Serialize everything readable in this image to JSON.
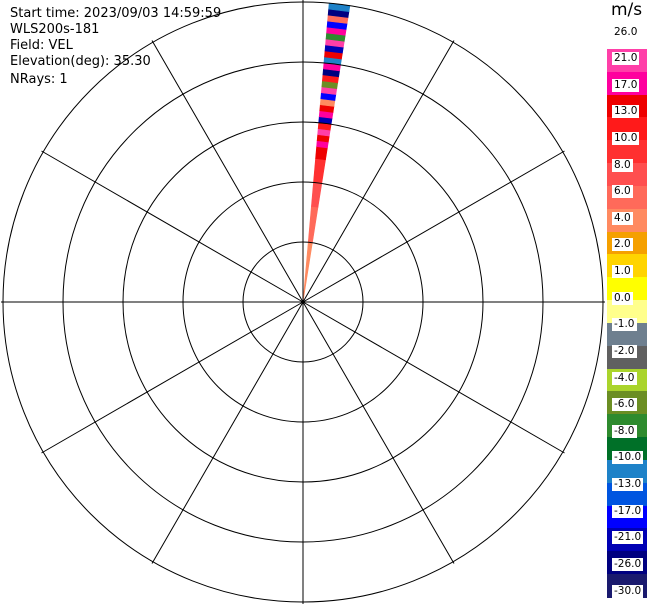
{
  "info": {
    "start_time": "Start time: 2023/09/03 14:59:59",
    "instrument": "WLS200s-181",
    "field": "Field: VEL",
    "elevation": "Elevation(deg): 35.30",
    "nrays": "NRays: 1"
  },
  "colorbar": {
    "unit": "m/s",
    "labels": [
      "26.0",
      "21.0",
      "17.0",
      "13.0",
      "10.0",
      "8.0",
      "6.0",
      "4.0",
      "2.0",
      "1.0",
      "0.0",
      "-1.0",
      "-2.0",
      "-4.0",
      "-6.0",
      "-8.0",
      "-10.0",
      "-13.0",
      "-17.0",
      "-21.0",
      "-26.0",
      "-30.0"
    ],
    "colors": [
      "#ffffff",
      "#ff3fa8",
      "#ff009e",
      "#ee0000",
      "#ff1a1a",
      "#ff3030",
      "#ff4f4f",
      "#ff6a5a",
      "#ff8a60",
      "#f5a000",
      "#ffd400",
      "#ffff00",
      "#ffff8c",
      "#6e7f8f",
      "#606060",
      "#aad42c",
      "#6b8e23",
      "#2e8b2e",
      "#007028",
      "#1e82c8",
      "#0055e0",
      "#0000ff",
      "#0000b4",
      "#000080",
      "#1a1a6e"
    ]
  },
  "chart_data": {
    "type": "ppi-polar",
    "field": "VEL",
    "units": "m/s",
    "elevation_deg": 35.3,
    "nrays": 1,
    "ray_azimuth_deg": 7,
    "ray_beam_width_deg": 4,
    "range_rings": 5,
    "spokes_deg": [
      0,
      30,
      60,
      90,
      120,
      150,
      180,
      210,
      240,
      270,
      300,
      330
    ],
    "ray_gates": [
      {
        "from": 0.0,
        "to": 0.2,
        "color": "#ff8a60"
      },
      {
        "from": 0.2,
        "to": 0.32,
        "color": "#ff6a5a"
      },
      {
        "from": 0.32,
        "to": 0.4,
        "color": "#ff4f4f"
      },
      {
        "from": 0.4,
        "to": 0.48,
        "color": "#ff3030"
      },
      {
        "from": 0.48,
        "to": 0.52,
        "color": "#ee0000"
      },
      {
        "from": 0.52,
        "to": 0.54,
        "color": "#ff009e"
      },
      {
        "from": 0.54,
        "to": 0.56,
        "color": "#ee0000"
      },
      {
        "from": 0.56,
        "to": 0.58,
        "color": "#ff3fa8"
      },
      {
        "from": 0.58,
        "to": 0.6,
        "color": "#ff1a1a"
      },
      {
        "from": 0.6,
        "to": 0.62,
        "color": "#0000b4"
      },
      {
        "from": 0.62,
        "to": 0.64,
        "color": "#ff009e"
      },
      {
        "from": 0.64,
        "to": 0.66,
        "color": "#ee0000"
      },
      {
        "from": 0.66,
        "to": 0.68,
        "color": "#ff8a60"
      },
      {
        "from": 0.68,
        "to": 0.7,
        "color": "#0000ff"
      },
      {
        "from": 0.7,
        "to": 0.72,
        "color": "#ff3fa8"
      },
      {
        "from": 0.72,
        "to": 0.74,
        "color": "#6b8e23"
      },
      {
        "from": 0.74,
        "to": 0.76,
        "color": "#ff1a1a"
      },
      {
        "from": 0.76,
        "to": 0.78,
        "color": "#000080"
      },
      {
        "from": 0.78,
        "to": 0.8,
        "color": "#ff009e"
      },
      {
        "from": 0.8,
        "to": 0.82,
        "color": "#1e82c8"
      },
      {
        "from": 0.82,
        "to": 0.84,
        "color": "#ee0000"
      },
      {
        "from": 0.84,
        "to": 0.86,
        "color": "#0000b4"
      },
      {
        "from": 0.86,
        "to": 0.88,
        "color": "#ff3fa8"
      },
      {
        "from": 0.88,
        "to": 0.9,
        "color": "#2e8b2e"
      },
      {
        "from": 0.9,
        "to": 0.92,
        "color": "#ff009e"
      },
      {
        "from": 0.92,
        "to": 0.94,
        "color": "#0000ff"
      },
      {
        "from": 0.94,
        "to": 0.96,
        "color": "#ff6a5a"
      },
      {
        "from": 0.96,
        "to": 0.98,
        "color": "#000080"
      },
      {
        "from": 0.98,
        "to": 1.0,
        "color": "#1e82c8"
      }
    ]
  }
}
